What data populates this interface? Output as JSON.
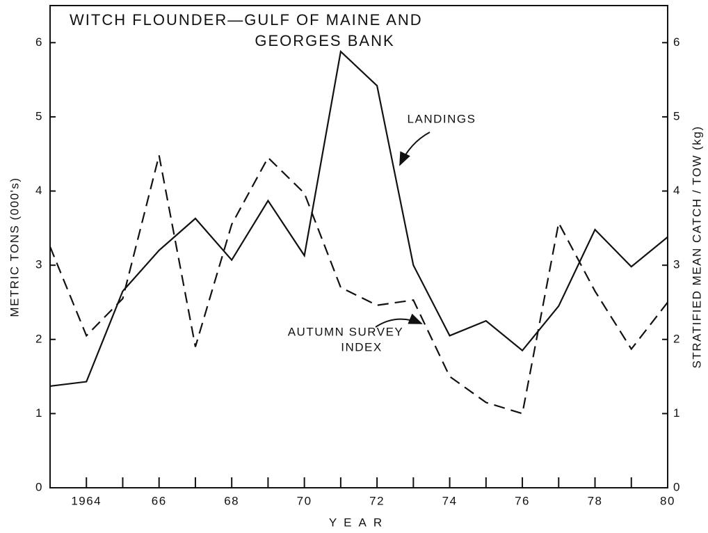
{
  "chart_data": {
    "type": "line",
    "title": [
      "WITCH FLOUNDER—GULF OF MAINE AND",
      "GEORGES BANK"
    ],
    "x_label": "YEAR",
    "y_label": "METRIC TONS (000's)",
    "y2_label": "STRATIFIED MEAN CATCH / TOW (kg)",
    "x": [
      1963,
      1964,
      1965,
      1966,
      1967,
      1968,
      1969,
      1970,
      1971,
      1972,
      1973,
      1974,
      1975,
      1976,
      1977,
      1978,
      1979,
      1980
    ],
    "series": [
      {
        "name": "LANDINGS",
        "color": "#111111",
        "dash": "solid",
        "values": [
          1.37,
          1.43,
          2.65,
          3.2,
          3.63,
          3.07,
          3.87,
          3.13,
          5.88,
          5.42,
          3.0,
          2.05,
          2.25,
          1.85,
          2.45,
          3.48,
          2.98,
          3.38
        ]
      },
      {
        "name": "AUTUMN SURVEY INDEX",
        "color": "#111111",
        "dash": "dashed",
        "axis": "y2",
        "values": [
          3.25,
          2.05,
          2.55,
          4.48,
          1.9,
          3.55,
          4.45,
          3.97,
          2.7,
          2.46,
          2.53,
          1.5,
          1.15,
          1.0,
          3.57,
          2.65,
          1.87,
          2.5
        ]
      }
    ],
    "annotations": [
      [
        "LANDINGS"
      ],
      [
        "AUTUMN SURVEY",
        "INDEX"
      ]
    ],
    "xlim": [
      1963,
      1980
    ],
    "xticks": [
      1964,
      {
        "value": 1966,
        "label": "66"
      },
      {
        "value": 1968,
        "label": "68"
      },
      {
        "value": 1970,
        "label": "70"
      },
      {
        "value": 1972,
        "label": "72"
      },
      {
        "value": 1974,
        "label": "74"
      },
      {
        "value": 1976,
        "label": "76"
      },
      {
        "value": 1978,
        "label": "78"
      },
      {
        "value": 1980,
        "label": "80"
      }
    ],
    "xminor_ticks": [
      1965,
      1967,
      1969,
      1971,
      1973,
      1975,
      1977,
      1979
    ],
    "ylim": [
      0,
      6.5
    ],
    "yticks": [
      0,
      1,
      2,
      3,
      4,
      5,
      6
    ],
    "y2lim": [
      0,
      6.5
    ],
    "y2ticks": [
      0,
      1,
      2,
      3,
      4,
      5,
      6
    ],
    "grid": false
  }
}
